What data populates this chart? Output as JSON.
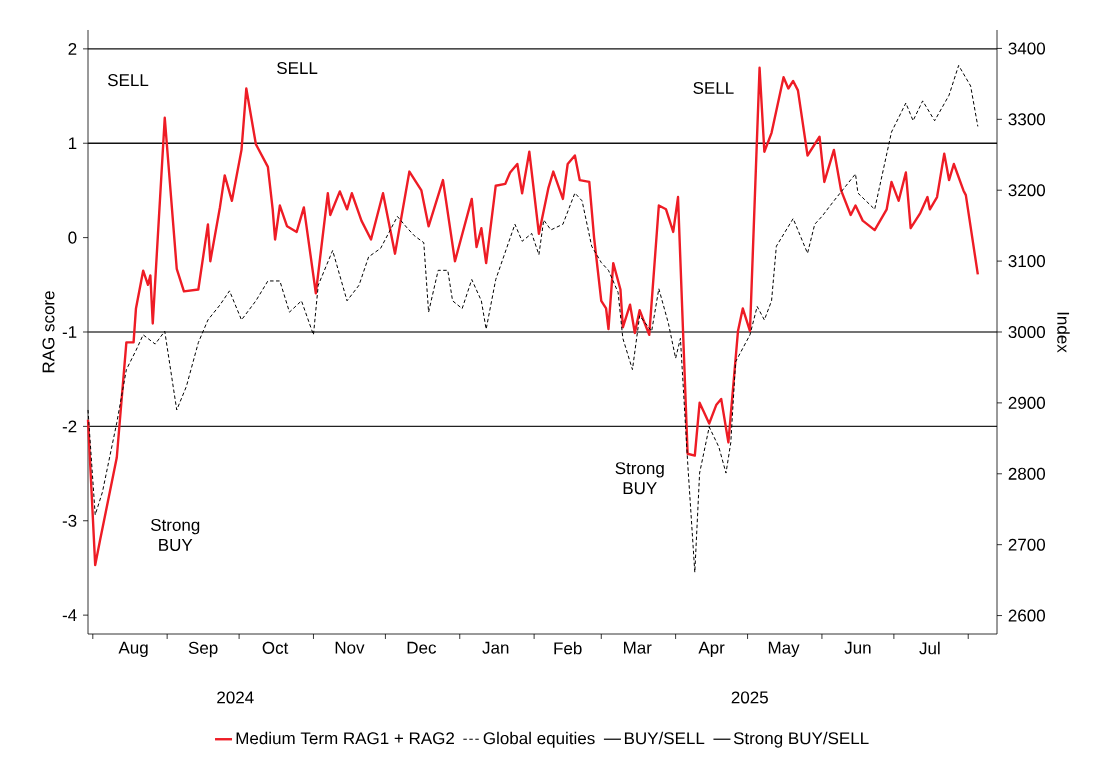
{
  "chart_data": {
    "type": "line",
    "ylabel": "RAG score",
    "y2label": "Index",
    "xlim": [
      "2024-07-30",
      "2025-08-13"
    ],
    "xticks": [
      {
        "value": "2024-08-01",
        "label": null
      },
      {
        "value": "2024-09-01",
        "label": null
      },
      {
        "value": "2024-10-01",
        "label": null
      },
      {
        "value": "2024-11-01",
        "label": null
      },
      {
        "value": "2024-12-01",
        "label": null
      },
      {
        "value": "2025-01-01",
        "label": null
      },
      {
        "value": "2025-02-01",
        "label": null
      },
      {
        "value": "2025-03-01",
        "label": null
      },
      {
        "value": "2025-04-01",
        "label": null
      },
      {
        "value": "2025-05-01",
        "label": null
      },
      {
        "value": "2025-06-01",
        "label": null
      },
      {
        "value": "2025-07-01",
        "label": null
      },
      {
        "value": "2025-08-01",
        "label": null
      },
      {
        "value": "2024-08-18",
        "label": "Aug"
      },
      {
        "value": "2024-09-16",
        "label": "Sep"
      },
      {
        "value": "2024-10-16",
        "label": "Oct"
      },
      {
        "value": "2024-11-16",
        "label": "Nov"
      },
      {
        "value": "2024-12-16",
        "label": "Dec"
      },
      {
        "value": "2025-01-16",
        "label": "Jan"
      },
      {
        "value": "2025-02-15",
        "label": "Feb"
      },
      {
        "value": "2025-03-16",
        "label": "Mar"
      },
      {
        "value": "2025-04-16",
        "label": "Apr"
      },
      {
        "value": "2025-05-16",
        "label": "May"
      },
      {
        "value": "2025-06-16",
        "label": "Jun"
      },
      {
        "value": "2025-07-16",
        "label": "Jul"
      }
    ],
    "ylim": [
      -4.2,
      2.2
    ],
    "yticks": [
      -4,
      -3,
      -2,
      -1,
      0,
      1,
      2
    ],
    "y2lim": [
      2574,
      3426
    ],
    "y2ticks": [
      2600,
      2700,
      2800,
      2900,
      3000,
      3100,
      3200,
      3300,
      3400
    ],
    "legend": "bottom",
    "grid": false,
    "marker": "none",
    "series": [
      {
        "name": "Medium Term RAG1 + RAG2",
        "color": "#ee1c25",
        "line_style": "solid",
        "axis": "y",
        "x": [
          "2024-07-30",
          "2024-08-02",
          "2024-08-04",
          "2024-08-11",
          "2024-08-15",
          "2024-08-18",
          "2024-08-19",
          "2024-08-22",
          "2024-08-24",
          "2024-08-25",
          "2024-08-26",
          "2024-08-31",
          "2024-09-05",
          "2024-09-08",
          "2024-09-14",
          "2024-09-18",
          "2024-09-19",
          "2024-09-23",
          "2024-09-25",
          "2024-09-28",
          "2024-10-02",
          "2024-10-04",
          "2024-10-08",
          "2024-10-13",
          "2024-10-15",
          "2024-10-16",
          "2024-10-18",
          "2024-10-21",
          "2024-10-25",
          "2024-10-28",
          "2024-11-02",
          "2024-11-07",
          "2024-11-08",
          "2024-11-12",
          "2024-11-15",
          "2024-11-17",
          "2024-11-21",
          "2024-11-25",
          "2024-11-30",
          "2024-12-05",
          "2024-12-11",
          "2024-12-16",
          "2024-12-19",
          "2024-12-25",
          "2024-12-30",
          "2025-01-06",
          "2025-01-08",
          "2025-01-10",
          "2025-01-12",
          "2025-01-16",
          "2025-01-20",
          "2025-01-22",
          "2025-01-25",
          "2025-01-27",
          "2025-01-30",
          "2025-02-03",
          "2025-02-07",
          "2025-02-09",
          "2025-02-13",
          "2025-02-15",
          "2025-02-18",
          "2025-02-20",
          "2025-02-24",
          "2025-02-26",
          "2025-03-01",
          "2025-03-03",
          "2025-03-04",
          "2025-03-06",
          "2025-03-09",
          "2025-03-10",
          "2025-03-13",
          "2025-03-15",
          "2025-03-17",
          "2025-03-21",
          "2025-03-25",
          "2025-03-28",
          "2025-03-31",
          "2025-04-02",
          "2025-04-06",
          "2025-04-09",
          "2025-04-11",
          "2025-04-15",
          "2025-04-18",
          "2025-04-20",
          "2025-04-23",
          "2025-04-27",
          "2025-04-29",
          "2025-05-02",
          "2025-05-06",
          "2025-05-08",
          "2025-05-11",
          "2025-05-16",
          "2025-05-18",
          "2025-05-20",
          "2025-05-22",
          "2025-05-26",
          "2025-05-31",
          "2025-06-02",
          "2025-06-06",
          "2025-06-09",
          "2025-06-13",
          "2025-06-15",
          "2025-06-18",
          "2025-06-23",
          "2025-06-28",
          "2025-06-30",
          "2025-07-03",
          "2025-07-06",
          "2025-07-08",
          "2025-07-12",
          "2025-07-15",
          "2025-07-16",
          "2025-07-19",
          "2025-07-22",
          "2025-07-24",
          "2025-07-26",
          "2025-07-30",
          "2025-07-31",
          "2025-08-05"
        ],
        "values": [
          -1.93,
          -3.47,
          -3.21,
          -2.33,
          -1.11,
          -1.11,
          -0.75,
          -0.35,
          -0.5,
          -0.4,
          -0.91,
          1.27,
          -0.33,
          -0.57,
          -0.55,
          0.14,
          -0.25,
          0.32,
          0.66,
          0.39,
          0.93,
          1.58,
          0.99,
          0.75,
          0.3,
          -0.02,
          0.34,
          0.12,
          0.06,
          0.32,
          -0.59,
          0.47,
          0.24,
          0.49,
          0.3,
          0.47,
          0.18,
          -0.02,
          0.47,
          -0.17,
          0.7,
          0.5,
          0.12,
          0.61,
          -0.25,
          0.41,
          -0.1,
          0.1,
          -0.27,
          0.55,
          0.57,
          0.69,
          0.78,
          0.47,
          0.91,
          0.04,
          0.53,
          0.7,
          0.41,
          0.78,
          0.87,
          0.61,
          0.59,
          0.0,
          -0.67,
          -0.75,
          -0.97,
          -0.27,
          -0.55,
          -0.95,
          -0.71,
          -1.01,
          -0.77,
          -1.03,
          0.34,
          0.3,
          0.06,
          0.43,
          -2.29,
          -2.31,
          -1.75,
          -1.97,
          -1.77,
          -1.71,
          -2.17,
          -0.99,
          -0.75,
          -0.99,
          1.8,
          0.91,
          1.11,
          1.7,
          1.58,
          1.66,
          1.56,
          0.87,
          1.07,
          0.59,
          0.93,
          0.5,
          0.24,
          0.34,
          0.18,
          0.08,
          0.3,
          0.59,
          0.39,
          0.69,
          0.1,
          0.26,
          0.43,
          0.3,
          0.43,
          0.89,
          0.61,
          0.78,
          0.5,
          0.45,
          -0.39
        ]
      },
      {
        "name": "Global equities",
        "color": "#000000",
        "line_style": "dashed",
        "axis": "y2",
        "x": [
          "2024-07-30",
          "2024-08-02",
          "2024-08-05",
          "2024-08-11",
          "2024-08-15",
          "2024-08-19",
          "2024-08-22",
          "2024-08-27",
          "2024-08-31",
          "2024-09-05",
          "2024-09-09",
          "2024-09-14",
          "2024-09-18",
          "2024-09-23",
          "2024-09-27",
          "2024-10-02",
          "2024-10-08",
          "2024-10-13",
          "2024-10-18",
          "2024-10-22",
          "2024-10-27",
          "2024-11-01",
          "2024-11-03",
          "2024-11-09",
          "2024-11-15",
          "2024-11-20",
          "2024-11-24",
          "2024-11-29",
          "2024-12-06",
          "2024-12-10",
          "2024-12-13",
          "2024-12-17",
          "2024-12-19",
          "2024-12-23",
          "2024-12-27",
          "2024-12-29",
          "2025-01-02",
          "2025-01-06",
          "2025-01-10",
          "2025-01-12",
          "2025-01-16",
          "2025-01-24",
          "2025-01-27",
          "2025-01-31",
          "2025-02-03",
          "2025-02-05",
          "2025-02-08",
          "2025-02-13",
          "2025-02-18",
          "2025-02-21",
          "2025-02-25",
          "2025-03-01",
          "2025-03-04",
          "2025-03-08",
          "2025-03-10",
          "2025-03-14",
          "2025-03-17",
          "2025-03-22",
          "2025-03-25",
          "2025-03-29",
          "2025-04-01",
          "2025-04-03",
          "2025-04-06",
          "2025-04-09",
          "2025-04-11",
          "2025-04-15",
          "2025-04-19",
          "2025-04-22",
          "2025-04-24",
          "2025-04-26",
          "2025-05-02",
          "2025-05-05",
          "2025-05-08",
          "2025-05-11",
          "2025-05-13",
          "2025-05-20",
          "2025-05-26",
          "2025-05-29",
          "2025-06-01",
          "2025-06-06",
          "2025-06-15",
          "2025-06-16",
          "2025-06-23",
          "2025-06-30",
          "2025-07-06",
          "2025-07-09",
          "2025-07-13",
          "2025-07-18",
          "2025-07-24",
          "2025-07-28",
          "2025-08-02",
          "2025-08-05"
        ],
        "values": [
          2890,
          2742,
          2774,
          2872,
          2947,
          2974,
          2996,
          2983,
          3001,
          2890,
          2923,
          2985,
          3017,
          3038,
          3058,
          3017,
          3044,
          3072,
          3072,
          3028,
          3044,
          2996,
          3066,
          3115,
          3044,
          3066,
          3106,
          3118,
          3163,
          3147,
          3136,
          3126,
          3028,
          3087,
          3087,
          3044,
          3033,
          3074,
          3044,
          3004,
          3074,
          3152,
          3128,
          3139,
          3109,
          3158,
          3144,
          3152,
          3196,
          3185,
          3121,
          3098,
          3087,
          3056,
          2991,
          2947,
          3023,
          3001,
          3061,
          3012,
          2963,
          2991,
          2817,
          2661,
          2801,
          2866,
          2838,
          2801,
          2844,
          2958,
          2996,
          3036,
          3017,
          3044,
          3121,
          3160,
          3111,
          3152,
          3163,
          3185,
          3223,
          3196,
          3173,
          3282,
          3323,
          3298,
          3326,
          3298,
          3334,
          3376,
          3347,
          3290
        ]
      }
    ],
    "ref_lines": [
      {
        "axis": "y",
        "value": 1,
        "label": "BUY/SELL",
        "color": "#111111"
      },
      {
        "axis": "y",
        "value": -1,
        "color": "#444444"
      },
      {
        "axis": "y",
        "value": 2,
        "label": "Strong BUY/SELL",
        "color": "#111111"
      },
      {
        "axis": "y",
        "value": -2,
        "color": "#222222"
      }
    ],
    "annotations": [
      "SELL",
      "SELL",
      "SELL",
      "Strong BUY",
      "Strong BUY",
      "2024",
      "2025"
    ]
  }
}
